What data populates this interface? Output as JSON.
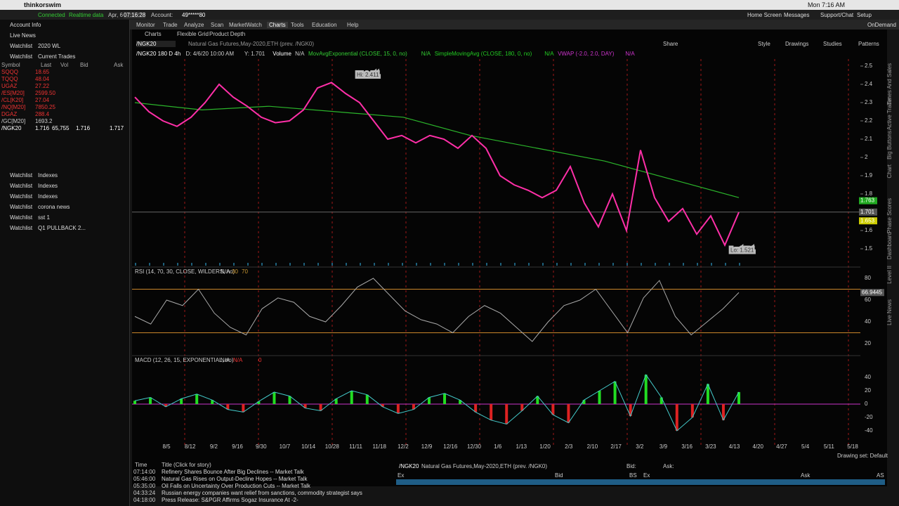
{
  "menubar": {
    "app": "thinkorswim",
    "clock": "Mon 7:16 AM"
  },
  "status": {
    "connected": "Connected",
    "realtime": "Realtime data",
    "date": "Apr, 6",
    "time": "07:16:28",
    "account_label": "Account:",
    "account": "49*****80"
  },
  "nav": [
    "Monitor",
    "Trade",
    "Analyze",
    "Scan",
    "MarketWatch",
    "Charts",
    "Tools",
    "Education",
    "Help"
  ],
  "top_links": [
    "Home Screen",
    "Messages",
    "Support/Chat",
    "Setup"
  ],
  "ondemand": "OnDemand",
  "subtabs": [
    "Charts",
    "Flexible Grid",
    "Product Depth"
  ],
  "sidebar": {
    "sections": [
      "Account Info",
      "Live News"
    ],
    "watchlist_label": "Watchlist",
    "top_watchlists": [
      "2020 WL",
      "Current Trades"
    ],
    "columns": [
      "Symbol",
      "Last",
      "Vol",
      "Bid",
      "Ask"
    ],
    "rows": [
      [
        "SQQQ",
        "18.65"
      ],
      [
        "TQQQ",
        "48.04"
      ],
      [
        "UGAZ",
        "27.22"
      ],
      [
        "/ES[M20]",
        "2599.50"
      ],
      [
        "/CL[K20]",
        "27.04"
      ],
      [
        "/NQ[M20]",
        "7850.25"
      ],
      [
        "DGAZ",
        "288.4"
      ],
      [
        "/GC[M20]",
        "1693.2"
      ],
      [
        "/NGK20",
        "1.716",
        "65,755",
        "1.716",
        "1.717"
      ]
    ],
    "lower_watchlists": [
      "Indexes",
      "Indexes",
      "Indexes",
      "corona news",
      "sst 1",
      "Q1 PULLBACK 2..."
    ]
  },
  "chart_toolbar": {
    "symbol": "/NGK20",
    "description": "Natural Gas Futures,May-2020,ETH (prev. /NGK0)",
    "tools": [
      "Share",
      "Style",
      "Drawings",
      "Studies",
      "Patterns"
    ]
  },
  "study_line": [
    "/NGK20 180 D 4h",
    "D: 4/6/20 10:00 AM",
    "Y: 1.701",
    "Volume",
    "N/A",
    "MovAvgExponential (CLOSE, 15, 0, no)",
    "N/A",
    "SimpleMovingAvg (CLOSE, 180, 0, no)",
    "N/A",
    "VWAP (-2.0, 2.0, DAY)",
    "N/A"
  ],
  "price_chart": {
    "high_label": "Hi: 2.411",
    "low_label": "Lo: 1.521",
    "ylim": [
      1.5,
      2.5
    ],
    "yticks": [
      1.5,
      1.6,
      1.7,
      1.8,
      1.9,
      2,
      2.1,
      2.2,
      2.3,
      2.4,
      2.5
    ],
    "price": [
      2.33,
      2.25,
      2.2,
      2.17,
      2.22,
      2.3,
      2.4,
      2.33,
      2.28,
      2.22,
      2.19,
      2.2,
      2.26,
      2.38,
      2.41,
      2.35,
      2.3,
      2.2,
      2.1,
      2.12,
      2.08,
      2.12,
      2.1,
      2.05,
      2.12,
      2.05,
      1.9,
      1.85,
      1.82,
      1.78,
      1.82,
      1.95,
      1.75,
      1.62,
      1.8,
      1.6,
      2.04,
      1.78,
      1.65,
      1.72,
      1.58,
      1.68,
      1.52,
      1.7
    ],
    "sma": [
      2.3,
      2.26,
      2.28,
      2.25,
      2.22,
      2.12,
      2.05,
      1.98,
      1.88,
      1.78
    ],
    "price_labels": [
      1.763,
      1.701,
      1.653
    ],
    "dates": [
      "8/5",
      "8/12",
      "9/2",
      "9/16",
      "9/30",
      "10/7",
      "10/14",
      "10/28",
      "11/11",
      "11/18",
      "12/2",
      "12/9",
      "12/16",
      "12/30",
      "1/6",
      "1/13",
      "1/20",
      "2/3",
      "2/10",
      "2/17",
      "3/2",
      "3/9",
      "3/16",
      "3/23",
      "4/13",
      "4/20",
      "4/27",
      "5/4",
      "5/11",
      "5/18"
    ]
  },
  "rsi": {
    "title": "RSI (14, 70, 30, CLOSE, WILDERS, no)",
    "na": "N/A",
    "oversold": 30,
    "overbought": 70,
    "ylim": [
      15,
      82
    ],
    "yticks": [
      20,
      40,
      60,
      80
    ],
    "current": 66.9445,
    "values": [
      45,
      38,
      60,
      55,
      70,
      48,
      35,
      28,
      52,
      62,
      58,
      45,
      40,
      55,
      72,
      80,
      65,
      50,
      42,
      38,
      30,
      45,
      55,
      48,
      35,
      22,
      40,
      55,
      60,
      70,
      50,
      30,
      62,
      78,
      45,
      28,
      40,
      52,
      66.9445
    ]
  },
  "macd": {
    "title": "MACD (12, 26, 15, EXPONENTIAL, no)",
    "na1": "N/A",
    "na2": "N/A",
    "zero": "0",
    "ylim": [
      -50,
      50
    ],
    "yticks": [
      -40,
      -20,
      0,
      20,
      40
    ],
    "values": [
      5,
      10,
      -4,
      8,
      15,
      6,
      -8,
      -12,
      4,
      18,
      12,
      -6,
      -10,
      8,
      20,
      14,
      -4,
      -14,
      -8,
      10,
      16,
      6,
      -12,
      -24,
      -30,
      -10,
      12,
      -16,
      -28,
      6,
      20,
      34,
      -18,
      44,
      10,
      -40,
      -20,
      30,
      -24,
      18
    ]
  },
  "news": {
    "columns": [
      "Time",
      "Title (Click for story)"
    ],
    "rows": [
      [
        "07:14:00",
        "Refinery Shares Bounce After Big Declines -- Market Talk"
      ],
      [
        "05:46:00",
        "Natural Gas Rises on Output-Decline Hopes -- Market Talk"
      ],
      [
        "05:35:00",
        "Oil Falls on Uncertainty Over Production Cuts -- Market Talk"
      ],
      [
        "04:33:24",
        "Russian energy companies want relief from sanctions, commodity strategist says"
      ],
      [
        "04:18:00",
        "Press Release: S&PGR Affirms Sogaz Insurance At -2-"
      ]
    ]
  },
  "order_bar": {
    "symbol": "/NGK20",
    "description": "Natural Gas Futures,May-2020,ETH (prev. /NGK0)",
    "bid": "Bid:",
    "ask": "Ask:",
    "columns": [
      "Ex",
      "Bid",
      "BS",
      "Ex",
      "Ask",
      "AS"
    ]
  },
  "drawing_set": "Drawing set: Default",
  "side_tabs": [
    "Times And Sales",
    "Active Trader",
    "Big Buttons",
    "Chart",
    "Phase Scores",
    "Dashboard",
    "Level II",
    "Live News"
  ]
}
